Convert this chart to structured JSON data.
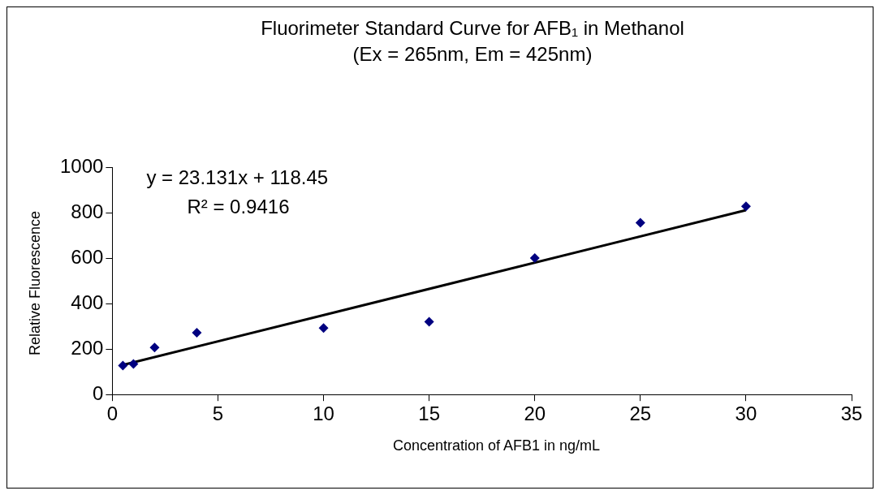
{
  "chart_data": {
    "type": "scatter",
    "title": "Fluorimeter Standard Curve for AFB₁ in Methanol",
    "subtitle": "(Ex = 265nm, Em = 425nm)",
    "xlabel": "Concentration of AFB1 in ng/mL",
    "ylabel": "Relative Fluorescence",
    "x": [
      0.5,
      1,
      2,
      4,
      10,
      15,
      20,
      25,
      30
    ],
    "series": [
      {
        "marker": "diamond",
        "color": "#000080",
        "values": [
          128,
          135,
          207,
          272,
          293,
          321,
          601,
          757,
          829
        ]
      },
      {
        "type": "line",
        "marker": "none",
        "color": "#000000",
        "x": [
          0.5,
          30
        ],
        "values": [
          130,
          812
        ]
      }
    ],
    "xlim": [
      0,
      35
    ],
    "xticks": [
      0,
      5,
      10,
      15,
      20,
      25,
      30,
      35
    ],
    "ylim": [
      0,
      1000
    ],
    "yticks": [
      0,
      200,
      400,
      600,
      800,
      1000
    ],
    "annotations": [
      "y = 23.131x + 118.45",
      "R² = 0.9416"
    ],
    "grid": false,
    "legend": false
  }
}
